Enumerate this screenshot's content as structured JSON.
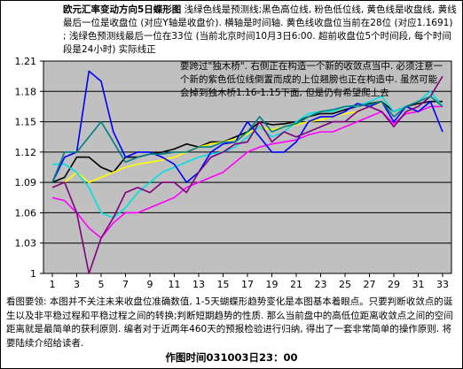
{
  "header": {
    "title": "欧元汇率变动方向5日蝶形图",
    "description": "浅绿色线是预测线;黑色高位线, 粉色低位线, 黄色线是收盘线, 黄线最后一位是收盘位 (对应Y轴是收盘价). 横轴是时间轴. 黄色线收盘位当前在28位 (对应1.1691) ; 浅绿色预测线最后一位在33位 (当前北京时间10月3日6:00. 超前收盘位5个时间段, 每个时间段是24小时) 实际线正"
  },
  "chart_note": "要跨过\"独木桥\". 右侧正在构造一个新的收敛点当中. 必须注意一个新的紫色低位线倒置而成的上位翘膀也正在构造中. 虽然可能会掉到独木桥1.16-1.15下面, 但是仍有希望爬上去",
  "footer": {
    "text": "看图要领: 本图并不关注未来收盘位准确数值, 1-5天蝴蝶形趋势变化是本图基本着眼点。只要判断收敛点的诞生以及非平稳过程和平稳过程之间的转换;判断短期趋势的性质. 那么当前盘中的高低位距离收敛点之间的空间距离就是最简单的获利原则. 编者对于近两年460天的预报检验进行归纳, 得出了一套非常简单的操作原则. 将要陆续介绍给读者.",
    "timestamp": "作图时间031003日23：00"
  },
  "colors": {
    "plot_bg": "#c0c0c0",
    "grid": "#000000",
    "black_high": "#000000",
    "pink_low": "#ff00ff",
    "yellow_close": "#ffff00",
    "lightgreen_forecast": "#00e0e0",
    "blue": "#0000ff",
    "purple": "#800080",
    "teal": "#008080"
  },
  "chart_data": {
    "type": "line",
    "x_categories": [
      "1",
      "3",
      "5",
      "7",
      "9",
      "11",
      "13",
      "15",
      "17",
      "19",
      "21",
      "23",
      "25",
      "27",
      "29",
      "31",
      "33"
    ],
    "x_range": [
      1,
      33
    ],
    "ylim": [
      1.0,
      1.21
    ],
    "y_ticks": [
      "1.21",
      "1.18",
      "1.15",
      "1.12",
      "1.09",
      "1.06",
      "1.03",
      "1"
    ],
    "y_tick_values": [
      1.21,
      1.18,
      1.15,
      1.12,
      1.09,
      1.06,
      1.03,
      1.0
    ],
    "grid": "horizontal",
    "series": [
      {
        "color": "#000000",
        "x": [
          1,
          2,
          3,
          4,
          5,
          6,
          7,
          8,
          9,
          10,
          11,
          12,
          13,
          14,
          15,
          16,
          17,
          18,
          19,
          20,
          21,
          22,
          23,
          24,
          25,
          26,
          27,
          28,
          29,
          30,
          31,
          32,
          33
        ],
        "y": [
          1.09,
          1.095,
          1.115,
          1.115,
          1.105,
          1.1,
          1.115,
          1.115,
          1.118,
          1.12,
          1.123,
          1.128,
          1.125,
          1.13,
          1.13,
          1.135,
          1.14,
          1.15,
          1.147,
          1.148,
          1.15,
          1.155,
          1.158,
          1.158,
          1.162,
          1.165,
          1.168,
          1.17,
          1.16,
          1.165,
          1.168,
          1.17,
          1.17
        ]
      },
      {
        "color": "#ff00ff",
        "x": [
          1,
          2,
          3,
          4,
          5,
          6,
          7,
          8,
          9,
          10,
          11,
          12,
          13,
          14,
          15,
          16,
          17,
          18,
          19,
          20,
          21,
          22,
          23,
          24,
          25,
          26,
          27,
          28,
          29,
          30,
          31,
          32,
          33
        ],
        "y": [
          1.075,
          1.072,
          1.06,
          1.045,
          1.035,
          1.05,
          1.06,
          1.06,
          1.065,
          1.07,
          1.075,
          1.085,
          1.09,
          1.095,
          1.1,
          1.11,
          1.12,
          1.125,
          1.128,
          1.13,
          1.132,
          1.137,
          1.14,
          1.14,
          1.145,
          1.15,
          1.155,
          1.16,
          1.148,
          1.158,
          1.16,
          1.165,
          1.165
        ]
      },
      {
        "color": "#ffff00",
        "x": [
          1,
          2,
          3,
          4,
          5,
          6,
          7,
          8,
          9,
          10,
          11,
          12,
          13,
          14,
          15,
          16,
          17,
          18,
          19,
          20,
          21,
          22,
          23,
          24,
          25,
          26,
          27,
          28
        ],
        "y": [
          1.085,
          1.09,
          1.1,
          1.09,
          1.095,
          1.1,
          1.105,
          1.108,
          1.11,
          1.112,
          1.115,
          1.12,
          1.125,
          1.128,
          1.13,
          1.133,
          1.138,
          1.145,
          1.142,
          1.145,
          1.147,
          1.15,
          1.152,
          1.155,
          1.158,
          1.16,
          1.165,
          1.169
        ]
      },
      {
        "color": "#00e0e0",
        "x": [
          1,
          2,
          3,
          4,
          5,
          6,
          7,
          8,
          9,
          10,
          11,
          12,
          13,
          14,
          15,
          16,
          17,
          18,
          19,
          20,
          21,
          22,
          23,
          24,
          25,
          26,
          27,
          28,
          29,
          30,
          31,
          32,
          33
        ],
        "y": [
          1.108,
          1.108,
          1.1,
          1.085,
          1.06,
          1.055,
          1.065,
          1.08,
          1.09,
          1.1,
          1.105,
          1.11,
          1.115,
          1.118,
          1.12,
          1.125,
          1.135,
          1.145,
          1.135,
          1.14,
          1.15,
          1.158,
          1.16,
          1.16,
          1.165,
          1.165,
          1.17,
          1.175,
          1.16,
          1.165,
          1.17,
          1.18,
          1.165
        ]
      },
      {
        "color": "#0000ff",
        "x": [
          1,
          2,
          3,
          4,
          5,
          6,
          7,
          8,
          9,
          10,
          11,
          12,
          13,
          14,
          15,
          16,
          17,
          18,
          19,
          20,
          21,
          22,
          23,
          24,
          25,
          26,
          27,
          28,
          29,
          30,
          31,
          32,
          33
        ],
        "y": [
          1.09,
          1.115,
          1.12,
          1.2,
          1.19,
          1.14,
          1.115,
          1.12,
          1.12,
          1.115,
          1.108,
          1.09,
          1.1,
          1.12,
          1.128,
          1.13,
          1.15,
          1.135,
          1.12,
          1.12,
          1.13,
          1.15,
          1.155,
          1.155,
          1.16,
          1.168,
          1.165,
          1.17,
          1.15,
          1.165,
          1.16,
          1.17,
          1.14
        ]
      },
      {
        "color": "#800080",
        "x": [
          1,
          2,
          3,
          4,
          5,
          6,
          7,
          8,
          9,
          10,
          11,
          12,
          13,
          14,
          15,
          16,
          17,
          18,
          19,
          20,
          21,
          22,
          23,
          24,
          25,
          26,
          27,
          28,
          29,
          30,
          31,
          32,
          33
        ],
        "y": [
          1.085,
          1.09,
          1.06,
          1.0,
          1.035,
          1.055,
          1.08,
          1.085,
          1.08,
          1.09,
          1.09,
          1.08,
          1.1,
          1.115,
          1.12,
          1.128,
          1.13,
          1.15,
          1.13,
          1.14,
          1.135,
          1.14,
          1.145,
          1.15,
          1.15,
          1.16,
          1.165,
          1.16,
          1.145,
          1.16,
          1.165,
          1.175,
          1.195
        ]
      },
      {
        "color": "#008080",
        "x": [
          1,
          2,
          3,
          4,
          5,
          6,
          7,
          8,
          9,
          10,
          11,
          12,
          13,
          14,
          15,
          16,
          17,
          18,
          19,
          20,
          21,
          22,
          23,
          24,
          25,
          26,
          27,
          28,
          29,
          30,
          31,
          32,
          33
        ],
        "y": [
          1.09,
          1.12,
          1.12,
          1.135,
          1.15,
          1.13,
          1.11,
          1.115,
          1.118,
          1.118,
          1.12,
          1.12,
          1.125,
          1.125,
          1.13,
          1.13,
          1.14,
          1.155,
          1.14,
          1.145,
          1.148,
          1.155,
          1.16,
          1.162,
          1.165,
          1.166,
          1.167,
          1.17,
          1.155,
          1.165,
          1.17,
          1.175,
          1.165
        ]
      }
    ]
  }
}
